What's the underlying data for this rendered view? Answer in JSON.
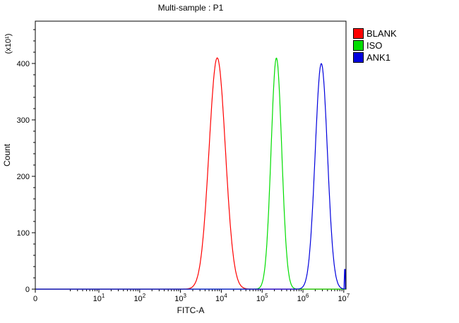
{
  "window": {
    "title": "Multi-sample : P1"
  },
  "chart_data": {
    "type": "line",
    "title": "Multi-sample : P1",
    "xlabel": "FITC-A",
    "ylabel": "Count",
    "y_unit_label": "(x10¹)",
    "x_scale": "log",
    "x_axis": {
      "origin_label": "0",
      "decade_exponents": [
        1,
        2,
        3,
        4,
        5,
        6,
        7
      ]
    },
    "y_axis": {
      "ticks": [
        0,
        100,
        200,
        300,
        400
      ],
      "minor_step": 20,
      "max": 475
    },
    "series": [
      {
        "name": "BLANK",
        "color": "#ff0000",
        "peak_log10_x": 3.9,
        "peak_count": 410,
        "sigma_log10": 0.2
      },
      {
        "name": "ISO",
        "color": "#00dd00",
        "peak_log10_x": 5.35,
        "peak_count": 410,
        "sigma_log10": 0.13
      },
      {
        "name": "ANK1",
        "color": "#0000dd",
        "peak_log10_x": 6.45,
        "peak_count": 400,
        "sigma_log10": 0.15,
        "edge_count": 35
      }
    ],
    "legend": {
      "position": "top-right",
      "entries": [
        "BLANK",
        "ISO",
        "ANK1"
      ]
    }
  }
}
